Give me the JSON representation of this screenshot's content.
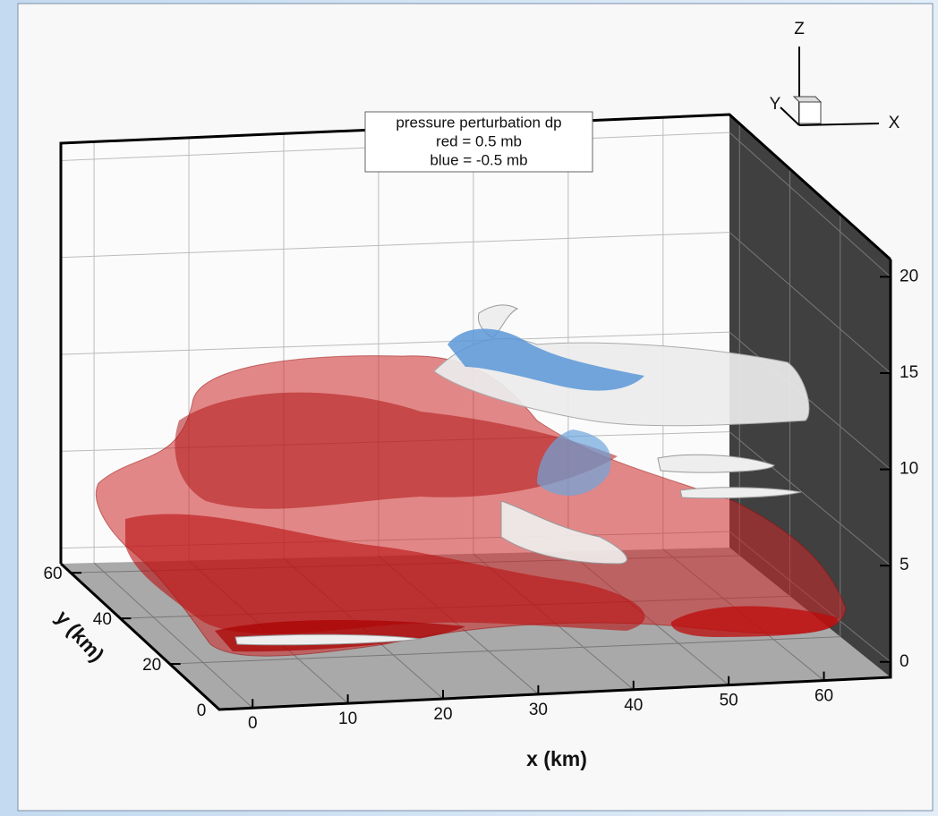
{
  "chart_data": {
    "type": "isosurface3d",
    "legend_lines": [
      "pressure perturbation dp",
      "red = 0.5 mb",
      "blue = -0.5 mb"
    ],
    "xlabel": "x (km)",
    "ylabel": "y (km)",
    "xlim": [
      -3.5,
      67
    ],
    "ylim": [
      0,
      64
    ],
    "zlim": [
      -0.8,
      20.9
    ],
    "xticks": [
      0,
      10,
      20,
      30,
      40,
      50,
      60
    ],
    "yticks": [
      0,
      20,
      40,
      60
    ],
    "zticks": [
      0,
      5,
      10,
      15,
      20
    ],
    "orientation_labels": [
      "X",
      "Y",
      "Z"
    ],
    "grid": true
  }
}
